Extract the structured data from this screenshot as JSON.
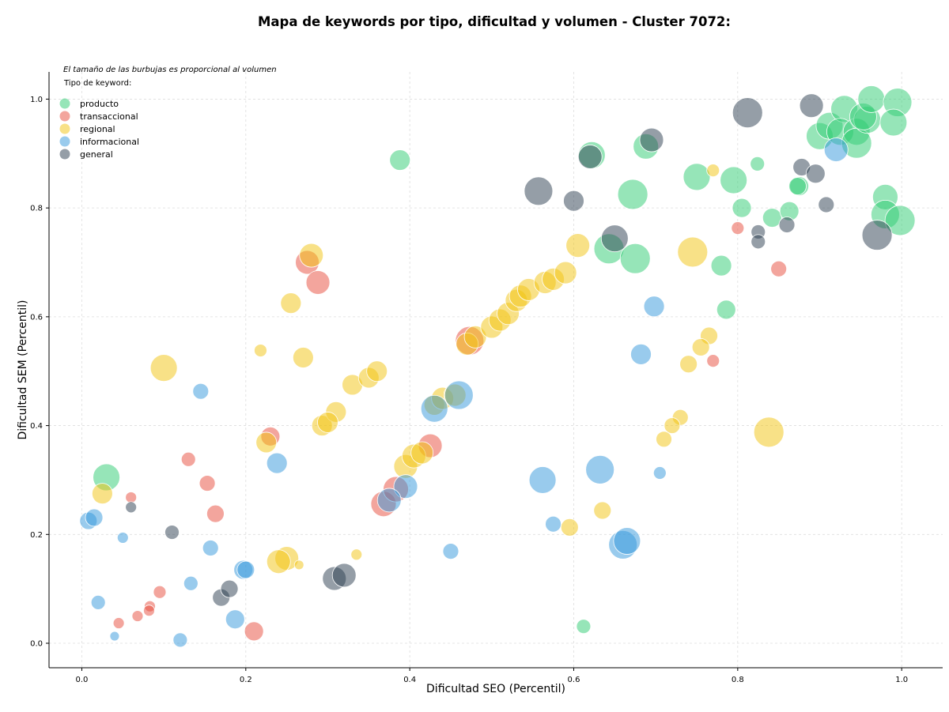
{
  "chart_data": {
    "type": "scatter",
    "title": "Mapa de keywords por tipo, dificultad y volumen - Cluster 7072:",
    "xlabel": "Dificultad SEO (Percentil)",
    "ylabel": "Dificultad SEM (Percentil)",
    "xlim": [
      -0.04,
      1.05
    ],
    "ylim": [
      -0.045,
      1.05
    ],
    "xticks": [
      "0.0",
      "0.2",
      "0.4",
      "0.6",
      "0.8",
      "1.0"
    ],
    "yticks": [
      "0.0",
      "0.2",
      "0.4",
      "0.6",
      "0.8",
      "1.0"
    ],
    "grid": true,
    "size_note": "El tamaño de las burbujas es proporcional al volumen",
    "legend_title": "Tipo de keyword:",
    "legend_position": "top-left",
    "series": [
      {
        "name": "producto",
        "color": "#2ecc71",
        "points": [
          [
            0.03,
            0.305,
            17
          ],
          [
            0.388,
            0.888,
            13
          ],
          [
            0.622,
            0.897,
            17
          ],
          [
            0.688,
            0.913,
            16
          ],
          [
            0.672,
            0.825,
            19
          ],
          [
            0.643,
            0.725,
            19
          ],
          [
            0.675,
            0.707,
            19
          ],
          [
            0.75,
            0.857,
            17
          ],
          [
            0.795,
            0.851,
            17
          ],
          [
            0.805,
            0.8,
            12
          ],
          [
            0.824,
            0.881,
            9
          ],
          [
            0.842,
            0.782,
            12
          ],
          [
            0.863,
            0.794,
            12
          ],
          [
            0.875,
            0.84,
            12
          ],
          [
            0.873,
            0.84,
            11
          ],
          [
            0.78,
            0.694,
            13
          ],
          [
            0.786,
            0.613,
            12
          ],
          [
            0.612,
            0.031,
            9
          ],
          [
            0.9,
            0.932,
            17
          ],
          [
            0.912,
            0.951,
            17
          ],
          [
            0.93,
            0.982,
            17
          ],
          [
            0.925,
            0.94,
            17
          ],
          [
            0.945,
            0.94,
            17
          ],
          [
            0.945,
            0.919,
            19
          ],
          [
            0.958,
            0.962,
            17
          ],
          [
            0.953,
            0.968,
            17
          ],
          [
            0.963,
            1.0,
            17
          ],
          [
            0.995,
            0.994,
            18
          ],
          [
            0.99,
            0.957,
            17
          ],
          [
            0.98,
            0.82,
            16
          ],
          [
            0.98,
            0.788,
            18
          ],
          [
            0.998,
            0.777,
            19
          ]
        ]
      },
      {
        "name": "transaccional",
        "color": "#e74c3c",
        "points": [
          [
            0.06,
            0.268,
            7
          ],
          [
            0.13,
            0.338,
            9
          ],
          [
            0.153,
            0.294,
            10
          ],
          [
            0.163,
            0.238,
            11
          ],
          [
            0.23,
            0.38,
            12
          ],
          [
            0.275,
            0.7,
            15
          ],
          [
            0.288,
            0.663,
            15
          ],
          [
            0.368,
            0.256,
            16
          ],
          [
            0.383,
            0.283,
            16
          ],
          [
            0.425,
            0.363,
            15
          ],
          [
            0.473,
            0.556,
            18
          ],
          [
            0.8,
            0.763,
            8
          ],
          [
            0.85,
            0.688,
            10
          ],
          [
            0.77,
            0.519,
            8
          ],
          [
            0.045,
            0.037,
            7
          ],
          [
            0.068,
            0.05,
            7
          ],
          [
            0.083,
            0.068,
            7
          ],
          [
            0.082,
            0.06,
            7
          ],
          [
            0.095,
            0.094,
            8
          ],
          [
            0.21,
            0.022,
            12
          ]
        ]
      },
      {
        "name": "regional",
        "color": "#f1c40f",
        "points": [
          [
            0.025,
            0.275,
            13
          ],
          [
            0.1,
            0.506,
            17
          ],
          [
            0.218,
            0.538,
            8
          ],
          [
            0.255,
            0.625,
            13
          ],
          [
            0.27,
            0.525,
            13
          ],
          [
            0.28,
            0.713,
            15
          ],
          [
            0.225,
            0.369,
            13
          ],
          [
            0.293,
            0.4,
            13
          ],
          [
            0.31,
            0.425,
            13
          ],
          [
            0.3,
            0.406,
            13
          ],
          [
            0.33,
            0.475,
            13
          ],
          [
            0.35,
            0.488,
            13
          ],
          [
            0.36,
            0.5,
            13
          ],
          [
            0.335,
            0.163,
            7
          ],
          [
            0.25,
            0.156,
            15
          ],
          [
            0.24,
            0.15,
            15
          ],
          [
            0.265,
            0.144,
            6
          ],
          [
            0.395,
            0.325,
            15
          ],
          [
            0.405,
            0.344,
            15
          ],
          [
            0.415,
            0.35,
            14
          ],
          [
            0.43,
            0.438,
            13
          ],
          [
            0.44,
            0.45,
            14
          ],
          [
            0.455,
            0.456,
            14
          ],
          [
            0.47,
            0.55,
            14
          ],
          [
            0.48,
            0.563,
            14
          ],
          [
            0.5,
            0.581,
            14
          ],
          [
            0.51,
            0.594,
            14
          ],
          [
            0.52,
            0.606,
            14
          ],
          [
            0.53,
            0.63,
            14
          ],
          [
            0.535,
            0.638,
            14
          ],
          [
            0.545,
            0.65,
            14
          ],
          [
            0.565,
            0.663,
            14
          ],
          [
            0.575,
            0.669,
            14
          ],
          [
            0.59,
            0.681,
            14
          ],
          [
            0.605,
            0.731,
            15
          ],
          [
            0.745,
            0.719,
            19
          ],
          [
            0.77,
            0.869,
            8
          ],
          [
            0.765,
            0.565,
            11
          ],
          [
            0.755,
            0.544,
            11
          ],
          [
            0.74,
            0.513,
            11
          ],
          [
            0.73,
            0.415,
            10
          ],
          [
            0.72,
            0.4,
            10
          ],
          [
            0.71,
            0.375,
            10
          ],
          [
            0.838,
            0.388,
            19
          ],
          [
            0.635,
            0.244,
            11
          ],
          [
            0.595,
            0.213,
            11
          ]
        ]
      },
      {
        "name": "informacional",
        "color": "#3498db",
        "points": [
          [
            0.008,
            0.225,
            11
          ],
          [
            0.015,
            0.231,
            11
          ],
          [
            0.05,
            0.194,
            7
          ],
          [
            0.145,
            0.463,
            10
          ],
          [
            0.238,
            0.331,
            13
          ],
          [
            0.43,
            0.431,
            17
          ],
          [
            0.46,
            0.456,
            18
          ],
          [
            0.395,
            0.288,
            15
          ],
          [
            0.375,
            0.263,
            15
          ],
          [
            0.562,
            0.3,
            17
          ],
          [
            0.632,
            0.319,
            18
          ],
          [
            0.66,
            0.181,
            18
          ],
          [
            0.665,
            0.188,
            17
          ],
          [
            0.575,
            0.219,
            10
          ],
          [
            0.45,
            0.169,
            10
          ],
          [
            0.682,
            0.531,
            13
          ],
          [
            0.698,
            0.619,
            13
          ],
          [
            0.705,
            0.313,
            8
          ],
          [
            0.92,
            0.907,
            15
          ],
          [
            0.02,
            0.075,
            9
          ],
          [
            0.04,
            0.013,
            6
          ],
          [
            0.12,
            0.006,
            9
          ],
          [
            0.133,
            0.11,
            9
          ],
          [
            0.157,
            0.175,
            10
          ],
          [
            0.197,
            0.135,
            12
          ],
          [
            0.2,
            0.135,
            11
          ],
          [
            0.187,
            0.044,
            12
          ]
        ]
      },
      {
        "name": "general",
        "color": "#2c3e50",
        "points": [
          [
            0.06,
            0.25,
            7
          ],
          [
            0.11,
            0.204,
            9
          ],
          [
            0.17,
            0.084,
            11
          ],
          [
            0.18,
            0.1,
            11
          ],
          [
            0.308,
            0.119,
            15
          ],
          [
            0.32,
            0.125,
            15
          ],
          [
            0.557,
            0.831,
            18
          ],
          [
            0.6,
            0.813,
            13
          ],
          [
            0.62,
            0.894,
            15
          ],
          [
            0.65,
            0.744,
            17
          ],
          [
            0.695,
            0.925,
            15
          ],
          [
            0.812,
            0.975,
            19
          ],
          [
            0.825,
            0.756,
            9
          ],
          [
            0.825,
            0.738,
            9
          ],
          [
            0.86,
            0.769,
            10
          ],
          [
            0.878,
            0.875,
            11
          ],
          [
            0.89,
            0.988,
            15
          ],
          [
            0.895,
            0.863,
            12
          ],
          [
            0.908,
            0.806,
            10
          ],
          [
            0.97,
            0.75,
            19
          ]
        ]
      }
    ]
  }
}
